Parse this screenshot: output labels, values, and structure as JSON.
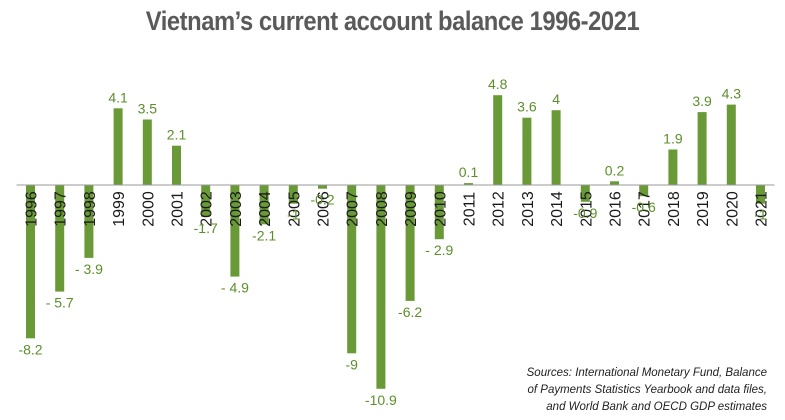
{
  "chart_data": {
    "type": "bar",
    "title": "Vietnam’s current account balance 1996-2021",
    "categories": [
      "1996",
      "1997",
      "1998",
      "1999",
      "2000",
      "2001",
      "2002",
      "2003",
      "2004",
      "2005",
      "2006",
      "2007",
      "2008",
      "2009",
      "2010",
      "2011",
      "2012",
      "2013",
      "2014",
      "2015",
      "2016",
      "2017",
      "2018",
      "2019",
      "2020",
      "2021"
    ],
    "values": [
      -8.2,
      -5.7,
      -3.9,
      4.1,
      3.5,
      2.1,
      -1.7,
      -4.9,
      -2.1,
      -1,
      -0.2,
      -9,
      -10.9,
      -6.2,
      -2.9,
      0.1,
      4.8,
      3.6,
      4,
      -0.9,
      0.2,
      -0.6,
      1.9,
      3.9,
      4.3,
      -1
    ],
    "value_labels": [
      "-8.2",
      "- 5.7",
      "- 3.9",
      "4.1",
      "3.5",
      "2.1",
      "-1.7",
      "- 4.9",
      "-2.1",
      "-1",
      "-0.2",
      "-9",
      "-10.9",
      "-6.2",
      "- 2.9",
      "0.1",
      "4.8",
      "3.6",
      "4",
      "-0.9",
      "0.2",
      "-0.6",
      "1.9",
      "3.9",
      "4.3",
      "-1"
    ],
    "xlabel": "",
    "ylabel": "",
    "ylim": [
      -11.5,
      5.5
    ],
    "grid": false,
    "bar_color": "#6a9a37",
    "label_color": "#5c8f2a"
  },
  "sources": [
    "Sources: International Monetary Fund, Balance",
    "of Payments Statistics Yearbook and data files,",
    "and World Bank and OECD GDP estimates"
  ]
}
